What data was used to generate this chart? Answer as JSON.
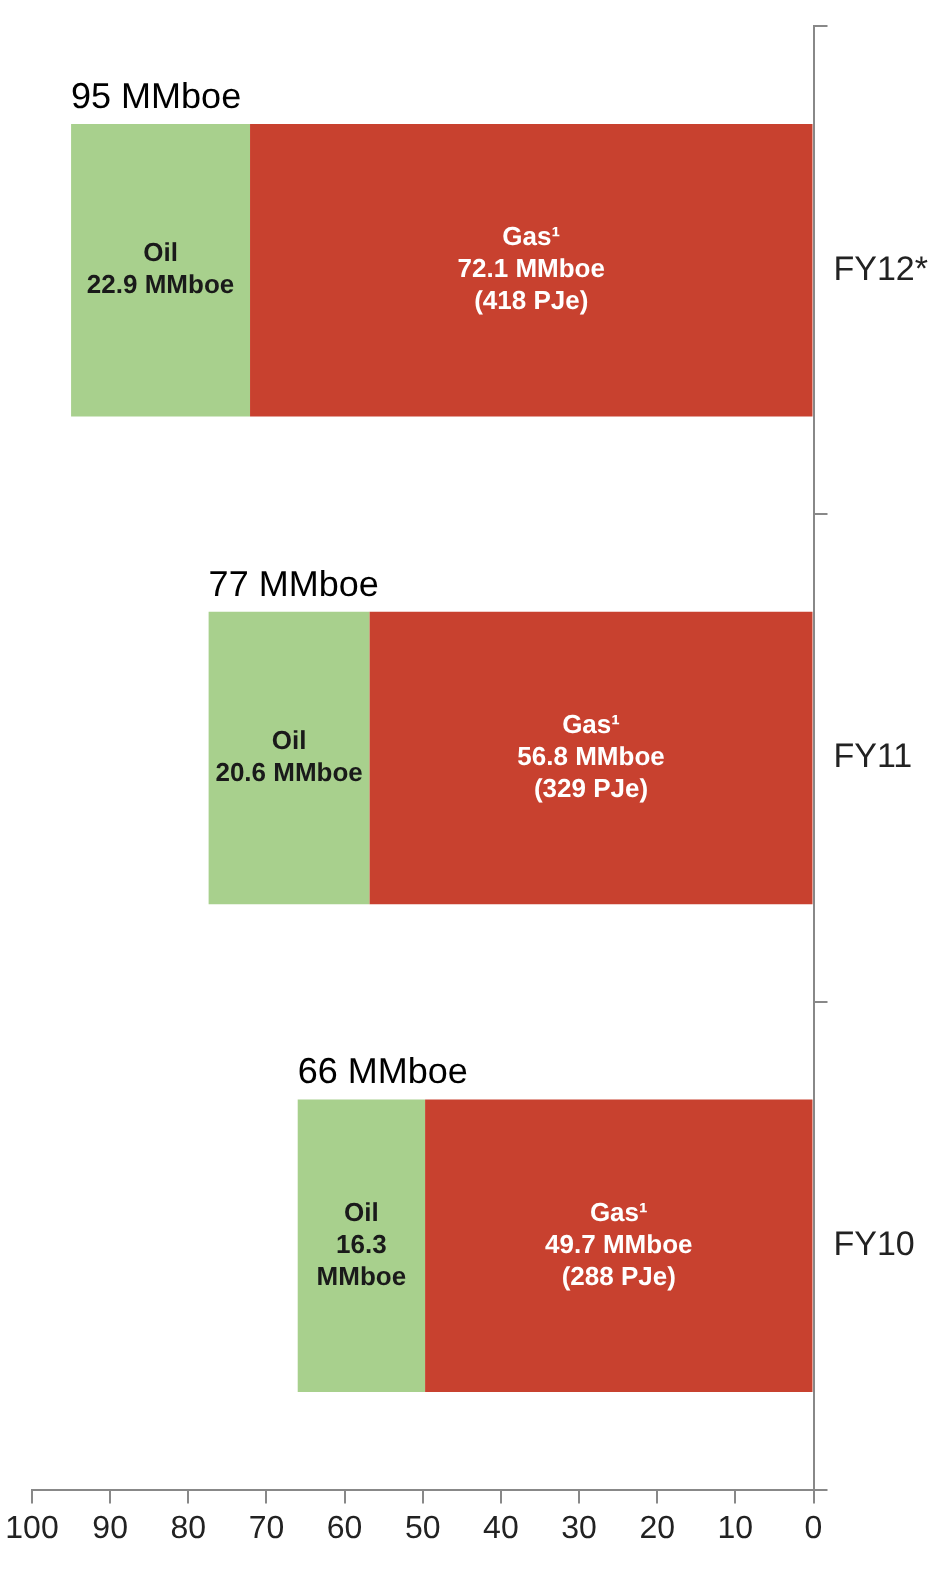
{
  "chart_data": {
    "type": "bar",
    "stacked": true,
    "orientation": "horizontal",
    "categories": [
      "FY12*",
      "FY11",
      "FY10"
    ],
    "series": [
      {
        "name": "Gas¹",
        "color": "#c8412f",
        "values": [
          72.1,
          56.8,
          49.7
        ],
        "value_labels": [
          "72.1 MMboe\n(418 PJe)",
          "56.8 MMboe\n(329 PJe)",
          "49.7 MMboe\n(288 PJe)"
        ]
      },
      {
        "name": "Oil",
        "color": "#a8d08d",
        "values": [
          22.9,
          20.6,
          16.3
        ],
        "value_labels": [
          "22.9 MMboe",
          "20.6 MMboe",
          "16.3 MMboe"
        ]
      }
    ],
    "totals": [
      "95 MMboe",
      "77 MMboe",
      "66 MMboe"
    ],
    "xlim": [
      100,
      0
    ],
    "xticks": [
      0,
      10,
      20,
      30,
      40,
      50,
      60,
      70,
      80,
      90,
      100
    ],
    "grid": false,
    "legend": false
  }
}
